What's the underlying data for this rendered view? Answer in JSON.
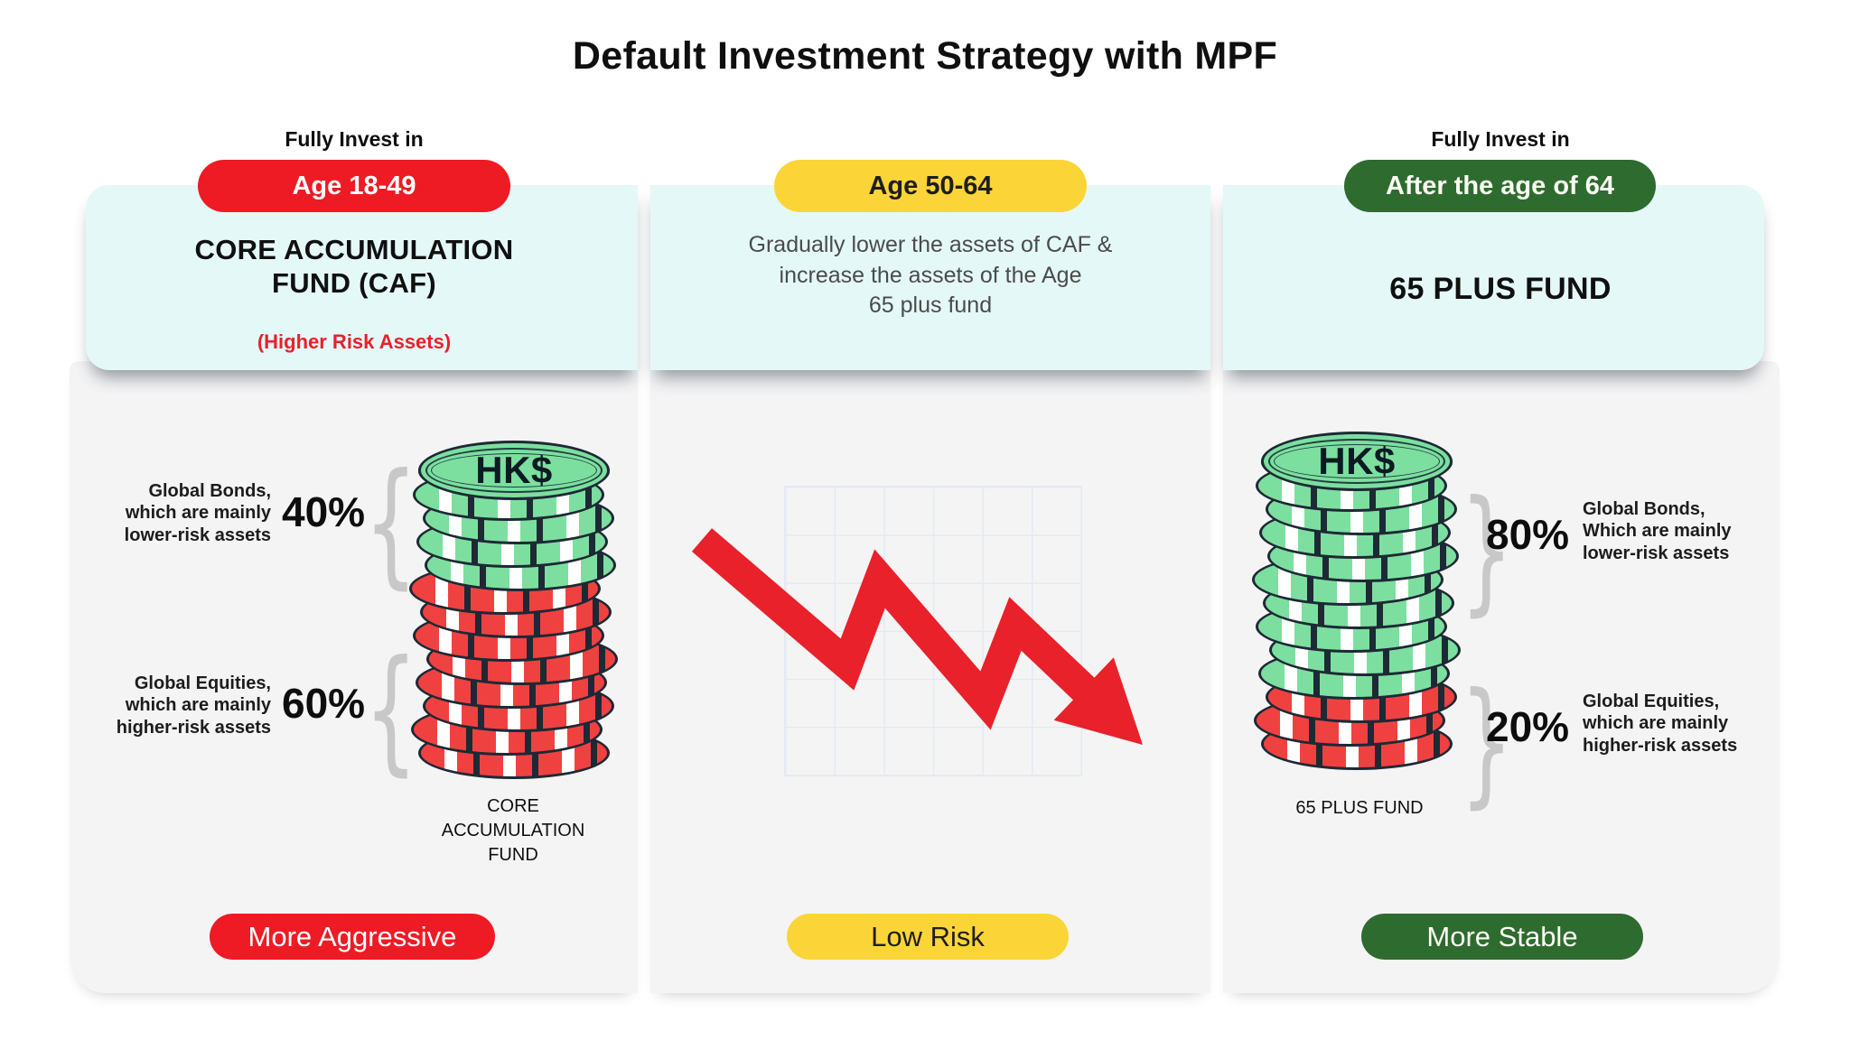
{
  "title": "Default Investment Strategy with MPF",
  "colors": {
    "red": "#EE1B24",
    "yellow": "#FBD437",
    "green_dark": "#2E6B2F",
    "band_bg": "#E4F8F8",
    "panel_bg": "#F4F4F5",
    "coin_green": "#7CDF9F",
    "coin_red": "#F04141",
    "outline": "#1D2935",
    "brace": "#C8C8C8",
    "arrow": "#E8212A",
    "grid_line": "#E4E9F2",
    "text_gray": "#4B4B4B",
    "red_text": "#E8212A"
  },
  "columns": [
    {
      "fully_invest": "Fully Invest in",
      "age_pill": "Age 18-49",
      "heading": "CORE ACCUMULATION FUND (CAF)",
      "subheading": "(Higher Risk Assets)",
      "allocations": [
        {
          "pct": 40,
          "pct_label": "40%",
          "lines": [
            "Global Bonds,",
            "which are mainly",
            "lower-risk assets"
          ]
        },
        {
          "pct": 60,
          "pct_label": "60%",
          "lines": [
            "Global Equities,",
            "which are mainly",
            "higher-risk assets"
          ]
        }
      ],
      "coin_label": "HK$",
      "stack_caption": "CORE ACCUMULATION FUND",
      "risk_pill": "More Aggressive"
    },
    {
      "age_pill": "Age 50-64",
      "description_lines": [
        "Gradually lower the assets of CAF &",
        "increase the assets of the Age",
        "65 plus fund"
      ],
      "risk_pill": "Low Risk"
    },
    {
      "fully_invest": "Fully Invest in",
      "age_pill": "After the age of 64",
      "heading": "65 PLUS FUND",
      "allocations": [
        {
          "pct": 80,
          "pct_label": "80%",
          "lines": [
            "Global Bonds,",
            "Which are mainly",
            "lower-risk assets"
          ]
        },
        {
          "pct": 20,
          "pct_label": "20%",
          "lines": [
            "Global Equities,",
            "which are mainly",
            "higher-risk assets"
          ]
        }
      ],
      "coin_label": "HK$",
      "stack_caption": "65 PLUS FUND",
      "risk_pill": "More Stable"
    }
  ]
}
